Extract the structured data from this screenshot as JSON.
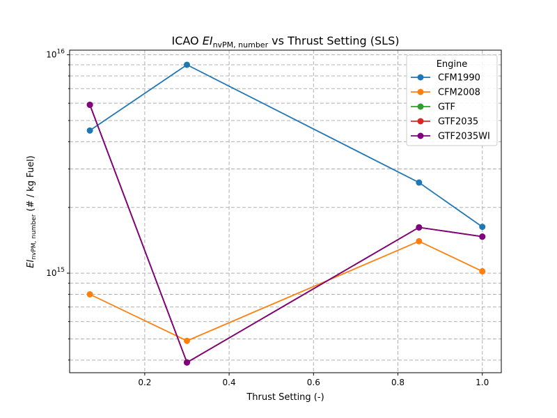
{
  "chart_data": {
    "type": "line",
    "title": {
      "prefix": "ICAO ",
      "ei": "EI",
      "sub": "nvPM, number",
      "suffix": " vs Thrust Setting (SLS)"
    },
    "xlabel": "Thrust Setting (-)",
    "ylabel": {
      "ei": "EI",
      "sub": "nvPM, number",
      "suffix": " (# / kg Fuel)"
    },
    "xlim": [
      0.022,
      1.045
    ],
    "ylim": [
      350000000000000.0,
      1.05e+16
    ],
    "yscale": "log",
    "grid": true,
    "legend_title": "Engine",
    "legend_position": "top-right",
    "x_ticks": [
      {
        "v": 0.2,
        "label": "0.2"
      },
      {
        "v": 0.4,
        "label": "0.4"
      },
      {
        "v": 0.6,
        "label": "0.6"
      },
      {
        "v": 0.8,
        "label": "0.8"
      },
      {
        "v": 1.0,
        "label": "1.0"
      }
    ],
    "y_major_ticks": [
      {
        "v": 1000000000000000.0,
        "base": "10",
        "exp": "15"
      },
      {
        "v": 1e+16,
        "base": "10",
        "exp": "16"
      }
    ],
    "y_minor_ticks": [
      400000000000000.0,
      500000000000000.0,
      600000000000000.0,
      700000000000000.0,
      800000000000000.0,
      900000000000000.0,
      2000000000000000.0,
      3000000000000000.0,
      4000000000000000.0,
      5000000000000000.0,
      6000000000000000.0,
      7000000000000000.0,
      8000000000000000.0,
      9000000000000000.0
    ],
    "x": [
      0.07,
      0.3,
      0.85,
      1.0
    ],
    "series": [
      {
        "name": "CFM1990",
        "color": "#1f77b4",
        "values": [
          4500000000000000.0,
          9000000000000000.0,
          2600000000000000.0,
          1630000000000000.0
        ]
      },
      {
        "name": "CFM2008",
        "color": "#ff7f0e",
        "values": [
          800000000000000.0,
          490000000000000.0,
          1400000000000000.0,
          1020000000000000.0
        ]
      },
      {
        "name": "GTF",
        "color": "#2ca02c",
        "values": [
          5900000000000000.0,
          390000000000000.0,
          1620000000000000.0,
          1470000000000000.0
        ]
      },
      {
        "name": "GTF2035",
        "color": "#d62728",
        "values": [
          5900000000000000.0,
          390000000000000.0,
          1620000000000000.0,
          1470000000000000.0
        ]
      },
      {
        "name": "GTF2035WI",
        "color": "#800080",
        "values": [
          5900000000000000.0,
          390000000000000.0,
          1620000000000000.0,
          1470000000000000.0
        ]
      }
    ]
  }
}
